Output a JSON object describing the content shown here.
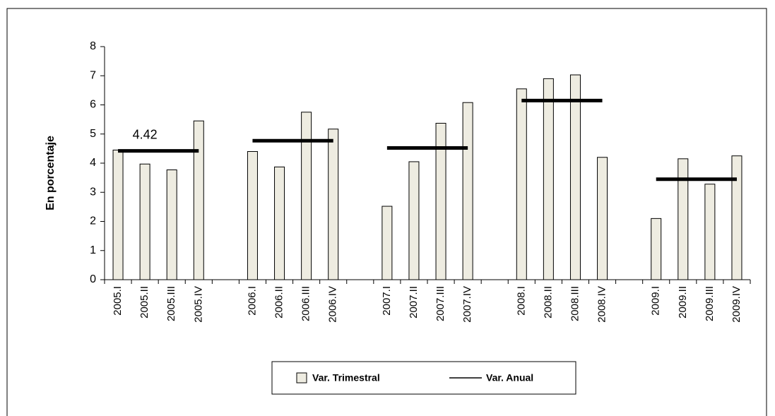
{
  "chart_data": {
    "type": "bar",
    "y_label": "En porcentaje",
    "categories": [
      "2005.I",
      "2005.II",
      "2005.III",
      "2005.IV",
      null,
      "2006.I",
      "2006.II",
      "2006.III",
      "2006.IV",
      null,
      "2007.I",
      "2007.II",
      "2007.III",
      "2007.IV",
      null,
      "2008.I",
      "2008.II",
      "2008.III",
      "2008.IV",
      null,
      "2009.I",
      "2009.II",
      "2009.III",
      "2009.IV"
    ],
    "series": [
      {
        "name": "Var. Trimestral",
        "type": "bar",
        "color": "#eeece1",
        "values": [
          4.45,
          3.97,
          3.77,
          5.45,
          null,
          4.4,
          3.87,
          5.75,
          5.17,
          null,
          2.52,
          4.05,
          5.37,
          6.08,
          null,
          6.55,
          6.9,
          7.03,
          4.2,
          null,
          2.1,
          4.15,
          3.28,
          4.25
        ]
      },
      {
        "name": "Var. Anual",
        "type": "line",
        "color": "#000000",
        "values": [
          4.42,
          4.42,
          4.42,
          4.42,
          null,
          4.77,
          4.77,
          4.77,
          4.77,
          null,
          4.52,
          4.52,
          4.52,
          4.52,
          null,
          6.15,
          6.15,
          6.15,
          6.15,
          null,
          3.45,
          3.45,
          3.45,
          3.45
        ]
      }
    ],
    "ylim": [
      0,
      8
    ],
    "yticks": [
      0,
      1,
      2,
      3,
      4,
      5,
      6,
      7,
      8
    ]
  }
}
